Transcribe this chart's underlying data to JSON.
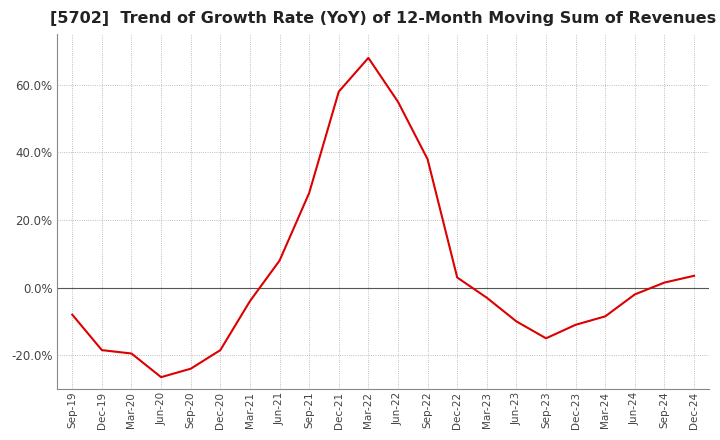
{
  "title": "[5702]  Trend of Growth Rate (YoY) of 12-Month Moving Sum of Revenues",
  "title_fontsize": 11.5,
  "line_color": "#dd0000",
  "background_color": "#ffffff",
  "plot_bg_color": "#ffffff",
  "grid_color": "#aaaaaa",
  "x_labels": [
    "Sep-19",
    "Dec-19",
    "Mar-20",
    "Jun-20",
    "Sep-20",
    "Dec-20",
    "Mar-21",
    "Jun-21",
    "Sep-21",
    "Dec-21",
    "Mar-22",
    "Jun-22",
    "Sep-22",
    "Dec-22",
    "Mar-23",
    "Jun-23",
    "Sep-23",
    "Dec-23",
    "Mar-24",
    "Jun-24",
    "Sep-24",
    "Dec-24"
  ],
  "y_values": [
    -8.0,
    -18.5,
    -19.5,
    -26.5,
    -24.0,
    -18.5,
    -4.0,
    8.0,
    28.0,
    58.0,
    68.0,
    55.0,
    38.0,
    3.0,
    -3.0,
    -10.0,
    -15.0,
    -11.0,
    -8.5,
    -2.0,
    1.5,
    3.5
  ],
  "ylim": [
    -30,
    75
  ],
  "yticks": [
    -20.0,
    0.0,
    20.0,
    40.0,
    60.0
  ]
}
